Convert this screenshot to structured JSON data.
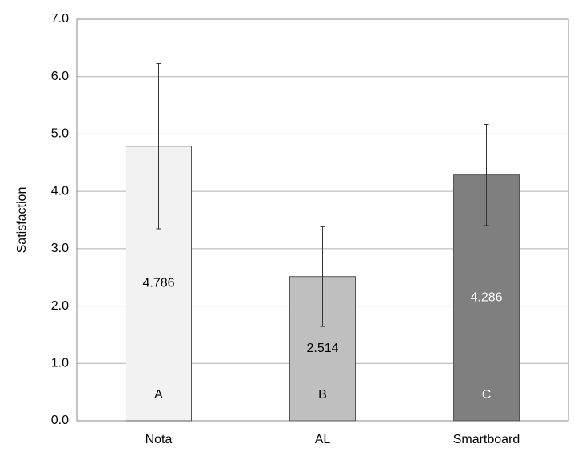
{
  "chart_data": {
    "type": "bar",
    "ylabel": "Satisfaction",
    "categories": [
      "Nota",
      "AL",
      "Smartboard"
    ],
    "values": [
      4.786,
      2.514,
      4.286
    ],
    "errors": [
      1.44,
      0.87,
      0.88
    ],
    "annotations": [
      "A",
      "B",
      "C"
    ],
    "colors": [
      "#f2f2f2",
      "#bfbfbf",
      "#7f7f7f"
    ],
    "ylim": [
      0,
      7
    ],
    "yticks": [
      {
        "value": 0,
        "label": "0.0"
      },
      {
        "value": 1,
        "label": "1.0"
      },
      {
        "value": 2,
        "label": "2.0"
      },
      {
        "value": 3,
        "label": "3.0"
      },
      {
        "value": 4,
        "label": "4.0"
      },
      {
        "value": 5,
        "label": "5.0"
      },
      {
        "value": 6,
        "label": "6.0"
      },
      {
        "value": 7,
        "label": "7.0"
      }
    ],
    "grid": true
  }
}
